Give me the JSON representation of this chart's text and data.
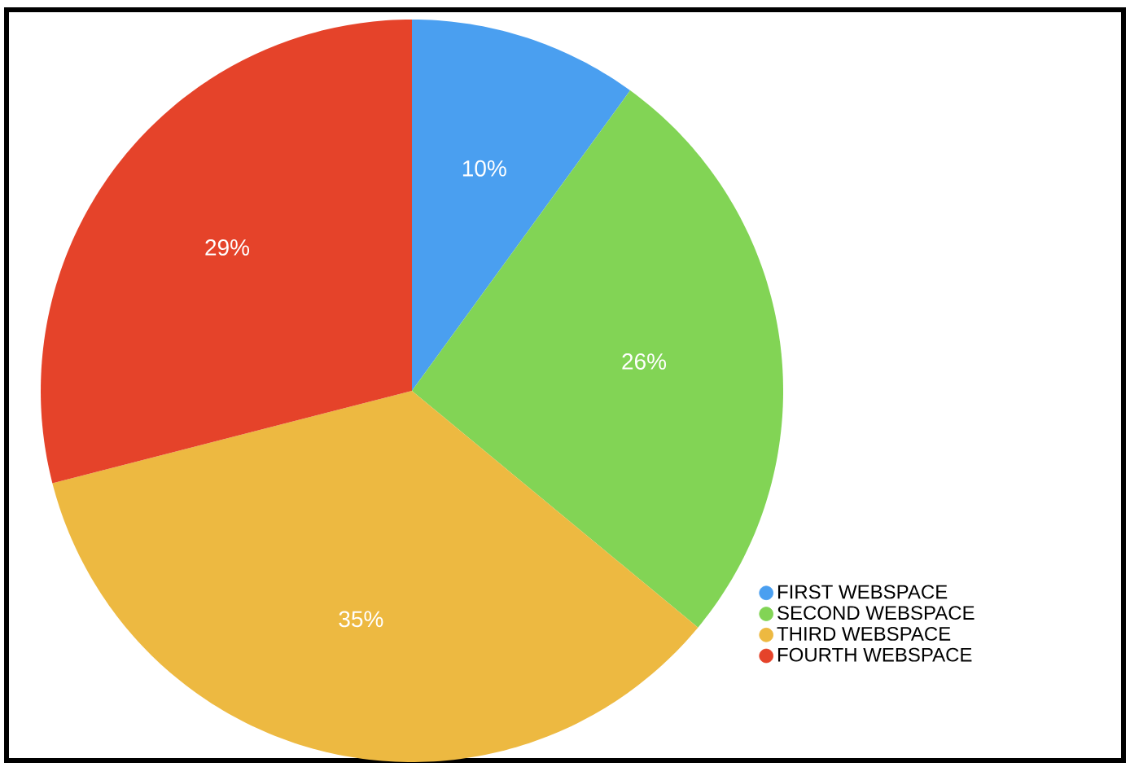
{
  "chart_data": {
    "type": "pie",
    "categories": [
      "FIRST WEBSPACE",
      "SECOND WEBSPACE",
      "THIRD WEBSPACE",
      "FOURTH WEBSPACE"
    ],
    "values": [
      10,
      26,
      35,
      29
    ],
    "value_labels": [
      "10%",
      "26%",
      "35%",
      "29%"
    ],
    "colors": [
      "#4a9ff0",
      "#82d455",
      "#edb941",
      "#e5432a"
    ],
    "legend": "bottom right"
  }
}
